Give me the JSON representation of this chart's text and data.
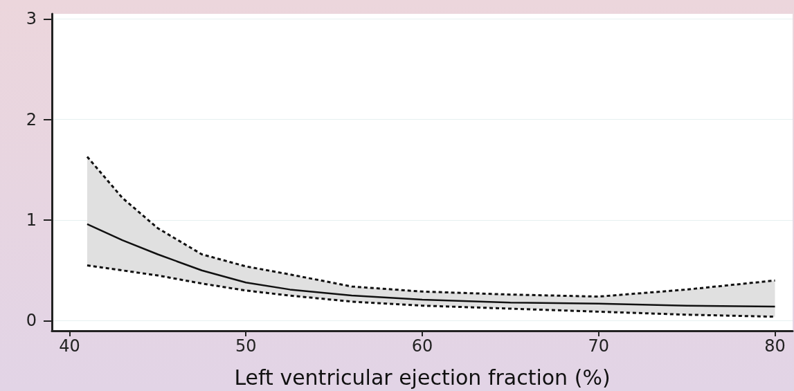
{
  "chart_data": {
    "type": "line",
    "xlabel": "Left ventricular ejection fraction (%)",
    "x": [
      41,
      43,
      45,
      47.5,
      50,
      52.5,
      56,
      60,
      65,
      70,
      75,
      80
    ],
    "series": [
      {
        "color": "#111111",
        "line_style": "solid",
        "values": [
          0.96,
          0.8,
          0.66,
          0.5,
          0.38,
          0.31,
          0.25,
          0.21,
          0.18,
          0.17,
          0.15,
          0.14
        ],
        "lower": [
          0.55,
          0.5,
          0.45,
          0.37,
          0.3,
          0.25,
          0.19,
          0.15,
          0.12,
          0.09,
          0.06,
          0.04
        ],
        "upper": [
          1.63,
          1.22,
          0.92,
          0.66,
          0.54,
          0.46,
          0.34,
          0.29,
          0.26,
          0.24,
          0.31,
          0.4
        ]
      },
      {
        "color": "#111111",
        "line_style": "dashed",
        "values": [
          1.63,
          1.22,
          0.92,
          0.66,
          0.54,
          0.46,
          0.34,
          0.29,
          0.26,
          0.24,
          0.31,
          0.4
        ]
      },
      {
        "color": "#111111",
        "line_style": "dashed",
        "values": [
          0.55,
          0.5,
          0.45,
          0.37,
          0.3,
          0.25,
          0.19,
          0.15,
          0.12,
          0.09,
          0.06,
          0.04
        ]
      }
    ],
    "xlim": [
      39,
      81
    ],
    "xticks": [
      40,
      50,
      60,
      70,
      80
    ],
    "ylim": [
      -0.1,
      3.05
    ],
    "yticks": [
      0,
      1,
      2,
      3
    ],
    "grid": "y",
    "marker": "none"
  }
}
